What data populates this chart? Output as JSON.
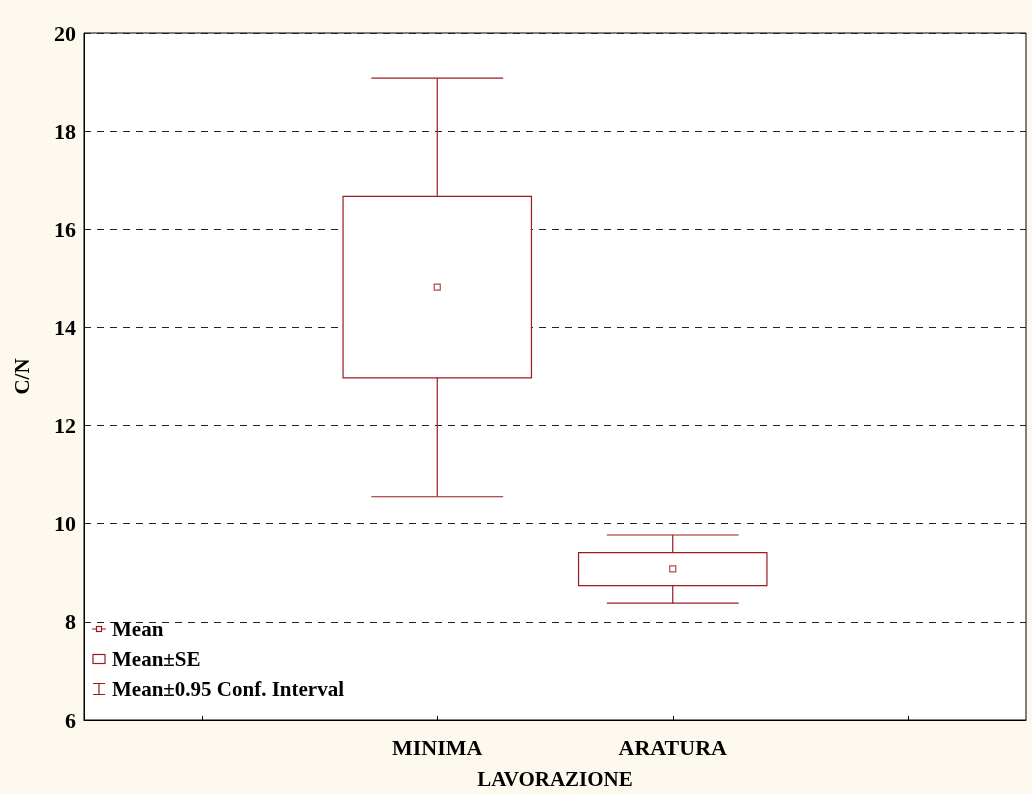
{
  "chart_data": {
    "type": "box",
    "xlabel": "LAVORAZIONE",
    "ylabel": "C/N",
    "categories": [
      null,
      "MINIMA",
      "ARATURA",
      null
    ],
    "series": [
      {
        "color": "#9b1b1f",
        "boxes": [
          null,
          {
            "low": 10.55,
            "q1": 12.97,
            "q3": 16.67,
            "high": 19.08,
            "mean": 14.82
          },
          {
            "low": 8.38,
            "q1": 8.74,
            "q3": 9.41,
            "high": 9.77,
            "mean": 9.08
          },
          null
        ]
      }
    ],
    "annotations": [
      "Mean",
      "Mean±SE",
      "Mean±0.95 Conf. Interval"
    ],
    "ylim": [
      6,
      20
    ],
    "yticks": [
      6,
      8,
      10,
      12,
      14,
      16,
      18,
      20
    ],
    "grid": "y"
  }
}
